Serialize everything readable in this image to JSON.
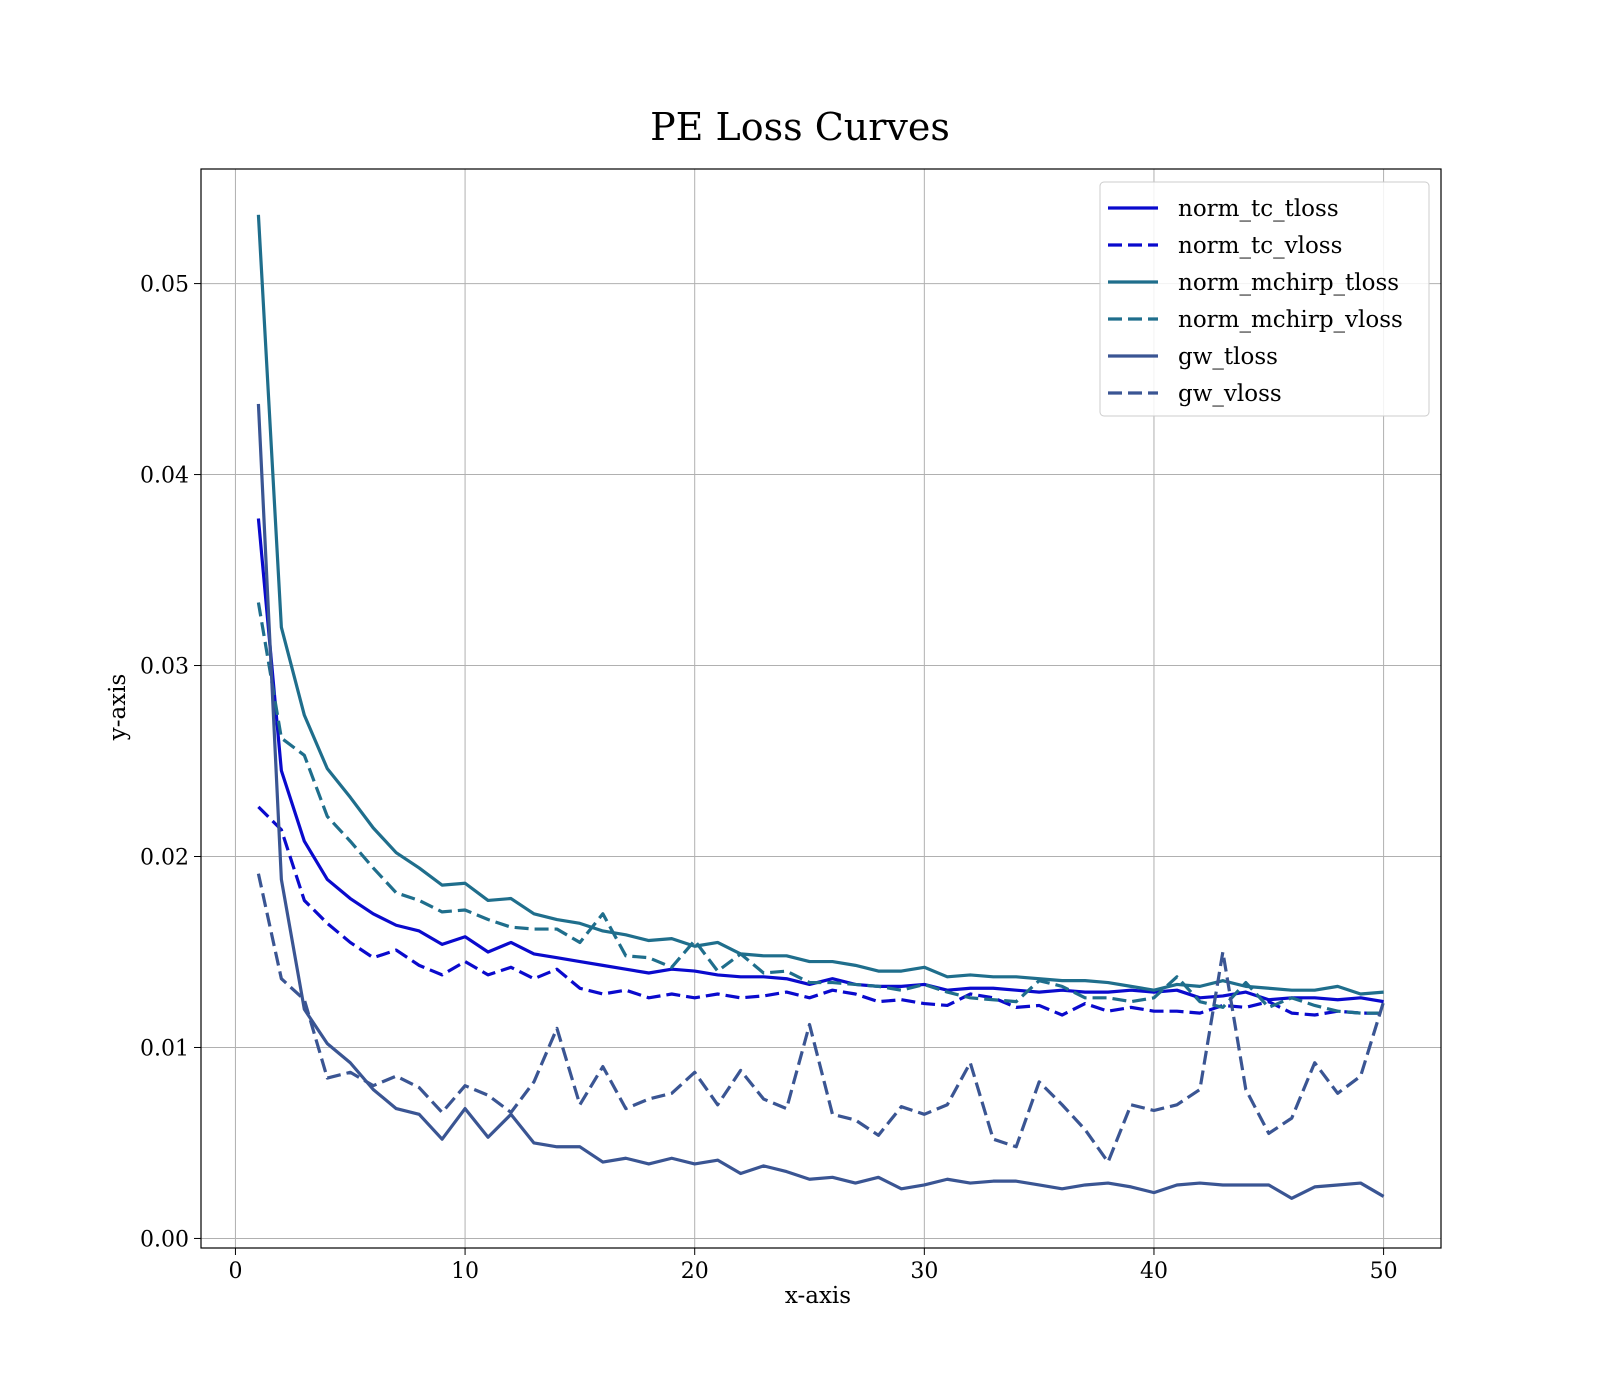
{
  "chart_data": {
    "type": "line",
    "title": "PE Loss Curves",
    "xlabel": "x-axis",
    "ylabel": "y-axis",
    "xlim": [
      -1.5,
      52.5
    ],
    "ylim": [
      -0.0005,
      0.056
    ],
    "xticks": [
      0,
      10,
      20,
      30,
      40,
      50
    ],
    "xtick_labels": [
      "0",
      "10",
      "20",
      "30",
      "40",
      "50"
    ],
    "yticks": [
      0.0,
      0.01,
      0.02,
      0.03,
      0.04,
      0.05
    ],
    "ytick_labels": [
      "0.00",
      "0.01",
      "0.02",
      "0.03",
      "0.04",
      "0.05"
    ],
    "grid": true,
    "legend_position": "top-right",
    "x": [
      1,
      2,
      3,
      4,
      5,
      6,
      7,
      8,
      9,
      10,
      11,
      12,
      13,
      14,
      15,
      16,
      17,
      18,
      19,
      20,
      21,
      22,
      23,
      24,
      25,
      26,
      27,
      28,
      29,
      30,
      31,
      32,
      33,
      34,
      35,
      36,
      37,
      38,
      39,
      40,
      41,
      42,
      43,
      44,
      45,
      46,
      47,
      48,
      49,
      50
    ],
    "series": [
      {
        "name": "norm_tc_tloss",
        "color": "#0a0acd",
        "dash": "solid",
        "values": [
          0.0377,
          0.0245,
          0.0208,
          0.0188,
          0.0178,
          0.017,
          0.0164,
          0.0161,
          0.0154,
          0.0158,
          0.015,
          0.0155,
          0.0149,
          0.0147,
          0.0145,
          0.0143,
          0.0141,
          0.0139,
          0.0141,
          0.014,
          0.0138,
          0.0137,
          0.0137,
          0.0136,
          0.0133,
          0.0136,
          0.0133,
          0.0132,
          0.0132,
          0.0133,
          0.013,
          0.0131,
          0.0131,
          0.013,
          0.0129,
          0.013,
          0.0129,
          0.0129,
          0.013,
          0.0129,
          0.013,
          0.0126,
          0.0127,
          0.0129,
          0.0125,
          0.0126,
          0.0126,
          0.0125,
          0.0126,
          0.0124
        ]
      },
      {
        "name": "norm_tc_vloss",
        "color": "#0a0acd",
        "dash": "dashed",
        "values": [
          0.0226,
          0.0214,
          0.0177,
          0.0165,
          0.0155,
          0.0147,
          0.0151,
          0.0143,
          0.0138,
          0.0145,
          0.0138,
          0.0142,
          0.0136,
          0.0141,
          0.0131,
          0.0128,
          0.013,
          0.0126,
          0.0128,
          0.0126,
          0.0128,
          0.0126,
          0.0127,
          0.0129,
          0.0126,
          0.013,
          0.0128,
          0.0124,
          0.0125,
          0.0123,
          0.0122,
          0.0128,
          0.0126,
          0.0121,
          0.0122,
          0.0117,
          0.0123,
          0.0119,
          0.0121,
          0.0119,
          0.0119,
          0.0118,
          0.0122,
          0.0121,
          0.0124,
          0.0118,
          0.0117,
          0.0119,
          0.0118,
          0.0118
        ]
      },
      {
        "name": "norm_mchirp_tloss",
        "color": "#1f6e8c",
        "dash": "solid",
        "values": [
          0.0536,
          0.032,
          0.0274,
          0.0246,
          0.0231,
          0.0215,
          0.0202,
          0.0194,
          0.0185,
          0.0186,
          0.0177,
          0.0178,
          0.017,
          0.0167,
          0.0165,
          0.0161,
          0.0159,
          0.0156,
          0.0157,
          0.0153,
          0.0155,
          0.0149,
          0.0148,
          0.0148,
          0.0145,
          0.0145,
          0.0143,
          0.014,
          0.014,
          0.0142,
          0.0137,
          0.0138,
          0.0137,
          0.0137,
          0.0136,
          0.0135,
          0.0135,
          0.0134,
          0.0132,
          0.013,
          0.0133,
          0.0132,
          0.0135,
          0.0132,
          0.0131,
          0.013,
          0.013,
          0.0132,
          0.0128,
          0.0129
        ]
      },
      {
        "name": "norm_mchirp_vloss",
        "color": "#1f6e8c",
        "dash": "dashed",
        "values": [
          0.0333,
          0.0262,
          0.0253,
          0.0221,
          0.0208,
          0.0194,
          0.0181,
          0.0177,
          0.0171,
          0.0172,
          0.0167,
          0.0163,
          0.0162,
          0.0162,
          0.0155,
          0.017,
          0.0148,
          0.0147,
          0.0142,
          0.0156,
          0.014,
          0.0149,
          0.0139,
          0.014,
          0.0134,
          0.0134,
          0.0133,
          0.0132,
          0.013,
          0.0133,
          0.0129,
          0.0126,
          0.0125,
          0.0124,
          0.0135,
          0.0132,
          0.0126,
          0.0126,
          0.0124,
          0.0126,
          0.0137,
          0.0124,
          0.0121,
          0.0134,
          0.0121,
          0.0126,
          0.0122,
          0.0119,
          0.0118,
          0.0118
        ]
      },
      {
        "name": "gw_tloss",
        "color": "#3a5593",
        "dash": "solid",
        "values": [
          0.0437,
          0.0188,
          0.012,
          0.0102,
          0.0092,
          0.0078,
          0.0068,
          0.0065,
          0.0052,
          0.0068,
          0.0053,
          0.0065,
          0.005,
          0.0048,
          0.0048,
          0.004,
          0.0042,
          0.0039,
          0.0042,
          0.0039,
          0.0041,
          0.0034,
          0.0038,
          0.0035,
          0.0031,
          0.0032,
          0.0029,
          0.0032,
          0.0026,
          0.0028,
          0.0031,
          0.0029,
          0.003,
          0.003,
          0.0028,
          0.0026,
          0.0028,
          0.0029,
          0.0027,
          0.0024,
          0.0028,
          0.0029,
          0.0028,
          0.0028,
          0.0028,
          0.0021,
          0.0027,
          0.0028,
          0.0029,
          0.0022
        ]
      },
      {
        "name": "gw_vloss",
        "color": "#3a5593",
        "dash": "dashed",
        "values": [
          0.0191,
          0.0136,
          0.0125,
          0.0084,
          0.0087,
          0.008,
          0.0085,
          0.0079,
          0.0066,
          0.008,
          0.0075,
          0.0066,
          0.0082,
          0.011,
          0.007,
          0.009,
          0.0068,
          0.0073,
          0.0076,
          0.0087,
          0.007,
          0.0088,
          0.0073,
          0.0068,
          0.0112,
          0.0065,
          0.0062,
          0.0054,
          0.0069,
          0.0065,
          0.007,
          0.0092,
          0.0052,
          0.0048,
          0.0082,
          0.007,
          0.0057,
          0.004,
          0.007,
          0.0067,
          0.007,
          0.0078,
          0.015,
          0.0078,
          0.0055,
          0.0063,
          0.0092,
          0.0076,
          0.0085,
          0.0124
        ]
      }
    ]
  }
}
